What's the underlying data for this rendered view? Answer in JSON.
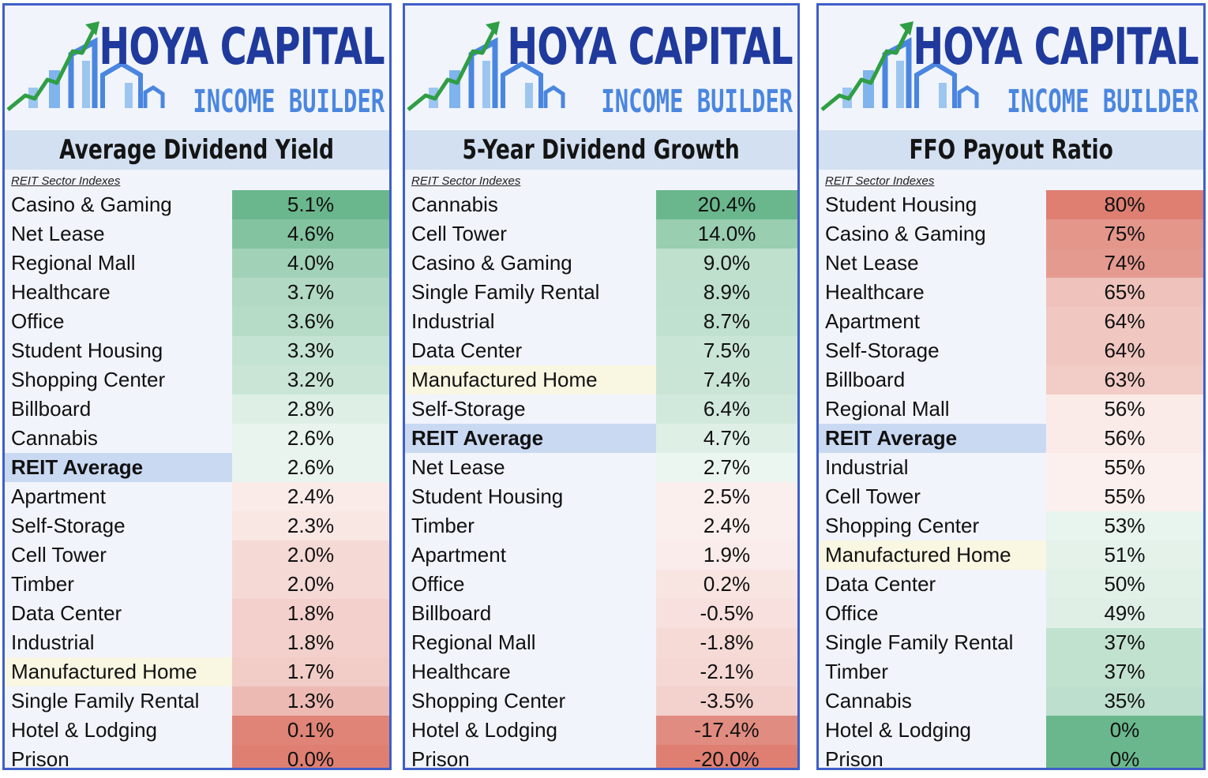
{
  "brand": {
    "line1": "HOYA CAPITAL",
    "line2": "INCOME BUILDER"
  },
  "subtitle": "REIT Sector Indexes",
  "colors": {
    "green_strong": "#6ab78d",
    "red_strong": "#de7f72",
    "neutral": "#ffffff",
    "reit_average_bg": "#cad9f2",
    "manufactured_home_bg": "#f9f6e2",
    "border": "#3f5fc8",
    "title_bar": "#d3e0f1"
  },
  "chart_data": [
    {
      "type": "table",
      "title": "Average Dividend Yield",
      "color_scale": "higher-is-green",
      "rows": [
        {
          "label": "Casino & Gaming",
          "value": 5.1,
          "display": "5.1%"
        },
        {
          "label": "Net Lease",
          "value": 4.6,
          "display": "4.6%"
        },
        {
          "label": "Regional Mall",
          "value": 4.0,
          "display": "4.0%"
        },
        {
          "label": "Healthcare",
          "value": 3.7,
          "display": "3.7%"
        },
        {
          "label": "Office",
          "value": 3.6,
          "display": "3.6%"
        },
        {
          "label": "Student Housing",
          "value": 3.3,
          "display": "3.3%"
        },
        {
          "label": "Shopping Center",
          "value": 3.2,
          "display": "3.2%"
        },
        {
          "label": "Billboard",
          "value": 2.8,
          "display": "2.8%"
        },
        {
          "label": "Cannabis",
          "value": 2.6,
          "display": "2.6%"
        },
        {
          "label": "REIT Average",
          "value": 2.6,
          "display": "2.6%"
        },
        {
          "label": "Apartment",
          "value": 2.4,
          "display": "2.4%"
        },
        {
          "label": "Self-Storage",
          "value": 2.3,
          "display": "2.3%"
        },
        {
          "label": "Cell Tower",
          "value": 2.0,
          "display": "2.0%"
        },
        {
          "label": "Timber",
          "value": 2.0,
          "display": "2.0%"
        },
        {
          "label": "Data Center",
          "value": 1.8,
          "display": "1.8%"
        },
        {
          "label": "Industrial",
          "value": 1.8,
          "display": "1.8%"
        },
        {
          "label": "Manufactured Home",
          "value": 1.7,
          "display": "1.7%"
        },
        {
          "label": "Single Family Rental",
          "value": 1.3,
          "display": "1.3%"
        },
        {
          "label": "Hotel & Lodging",
          "value": 0.1,
          "display": "0.1%"
        },
        {
          "label": "Prison",
          "value": 0.0,
          "display": "0.0%"
        }
      ]
    },
    {
      "type": "table",
      "title": "5-Year Dividend Growth",
      "color_scale": "higher-is-green",
      "rows": [
        {
          "label": "Cannabis",
          "value": 20.4,
          "display": "20.4%"
        },
        {
          "label": "Cell Tower",
          "value": 14.0,
          "display": "14.0%"
        },
        {
          "label": "Casino & Gaming",
          "value": 9.0,
          "display": "9.0%"
        },
        {
          "label": "Single Family Rental",
          "value": 8.9,
          "display": "8.9%"
        },
        {
          "label": "Industrial",
          "value": 8.7,
          "display": "8.7%"
        },
        {
          "label": "Data Center",
          "value": 7.5,
          "display": "7.5%"
        },
        {
          "label": "Manufactured Home",
          "value": 7.4,
          "display": "7.4%"
        },
        {
          "label": "Self-Storage",
          "value": 6.4,
          "display": "6.4%"
        },
        {
          "label": "REIT Average",
          "value": 4.7,
          "display": "4.7%"
        },
        {
          "label": "Net Lease",
          "value": 2.7,
          "display": "2.7%"
        },
        {
          "label": "Student Housing",
          "value": 2.5,
          "display": "2.5%"
        },
        {
          "label": "Timber",
          "value": 2.4,
          "display": "2.4%"
        },
        {
          "label": "Apartment",
          "value": 1.9,
          "display": "1.9%"
        },
        {
          "label": "Office",
          "value": 0.2,
          "display": "0.2%"
        },
        {
          "label": "Billboard",
          "value": -0.5,
          "display": "-0.5%"
        },
        {
          "label": "Regional Mall",
          "value": -1.8,
          "display": "-1.8%"
        },
        {
          "label": "Healthcare",
          "value": -2.1,
          "display": "-2.1%"
        },
        {
          "label": "Shopping Center",
          "value": -3.5,
          "display": "-3.5%"
        },
        {
          "label": "Hotel & Lodging",
          "value": -17.4,
          "display": "-17.4%"
        },
        {
          "label": "Prison",
          "value": -20.0,
          "display": "-20.0%"
        }
      ]
    },
    {
      "type": "table",
      "title": "FFO Payout Ratio",
      "color_scale": "higher-is-red",
      "rows": [
        {
          "label": "Student Housing",
          "value": 80,
          "display": "80%"
        },
        {
          "label": "Casino & Gaming",
          "value": 75,
          "display": "75%"
        },
        {
          "label": "Net Lease",
          "value": 74,
          "display": "74%"
        },
        {
          "label": "Healthcare",
          "value": 65,
          "display": "65%"
        },
        {
          "label": "Apartment",
          "value": 64,
          "display": "64%"
        },
        {
          "label": "Self-Storage",
          "value": 64,
          "display": "64%"
        },
        {
          "label": "Billboard",
          "value": 63,
          "display": "63%"
        },
        {
          "label": "Regional Mall",
          "value": 56,
          "display": "56%"
        },
        {
          "label": "REIT Average",
          "value": 56,
          "display": "56%"
        },
        {
          "label": "Industrial",
          "value": 55,
          "display": "55%"
        },
        {
          "label": "Cell Tower",
          "value": 55,
          "display": "55%"
        },
        {
          "label": "Shopping Center",
          "value": 53,
          "display": "53%"
        },
        {
          "label": "Manufactured Home",
          "value": 51,
          "display": "51%"
        },
        {
          "label": "Data Center",
          "value": 50,
          "display": "50%"
        },
        {
          "label": "Office",
          "value": 49,
          "display": "49%"
        },
        {
          "label": "Single Family Rental",
          "value": 37,
          "display": "37%"
        },
        {
          "label": "Timber",
          "value": 37,
          "display": "37%"
        },
        {
          "label": "Cannabis",
          "value": 35,
          "display": "35%"
        },
        {
          "label": "Hotel & Lodging",
          "value": 0,
          "display": "0%"
        },
        {
          "label": "Prison",
          "value": 0,
          "display": "0%"
        }
      ]
    }
  ]
}
